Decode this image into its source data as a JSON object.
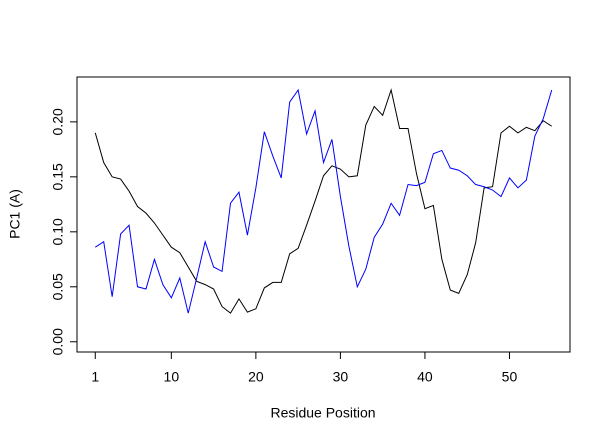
{
  "chart_data": {
    "type": "line",
    "x_label": "Residue Position",
    "y_label": "PC1 (A)",
    "x": [
      1,
      2,
      3,
      4,
      5,
      6,
      7,
      8,
      9,
      10,
      11,
      12,
      13,
      14,
      15,
      16,
      17,
      18,
      19,
      20,
      21,
      22,
      23,
      24,
      25,
      26,
      27,
      28,
      29,
      30,
      31,
      32,
      33,
      34,
      35,
      36,
      37,
      38,
      39,
      40,
      41,
      42,
      43,
      44,
      45,
      46,
      47,
      48,
      49,
      50,
      51,
      52,
      53,
      54,
      55
    ],
    "series": [
      {
        "color": "#000000",
        "values": [
          0.19,
          0.163,
          0.15,
          0.148,
          0.137,
          0.123,
          0.117,
          0.108,
          0.097,
          0.086,
          0.081,
          0.068,
          0.055,
          0.052,
          0.048,
          0.032,
          0.026,
          0.039,
          0.027,
          0.03,
          0.049,
          0.054,
          0.054,
          0.08,
          0.085,
          0.106,
          0.128,
          0.151,
          0.16,
          0.157,
          0.15,
          0.151,
          0.197,
          0.214,
          0.206,
          0.229,
          0.194,
          0.194,
          0.153,
          0.121,
          0.124,
          0.075,
          0.047,
          0.044,
          0.061,
          0.09,
          0.14,
          0.141,
          0.19,
          0.196,
          0.19,
          0.195,
          0.192,
          0.201,
          0.196
        ]
      },
      {
        "color": "#0000ff",
        "values": [
          0.086,
          0.091,
          0.041,
          0.098,
          0.106,
          0.05,
          0.048,
          0.075,
          0.052,
          0.04,
          0.058,
          0.026,
          0.058,
          0.091,
          0.068,
          0.064,
          0.126,
          0.136,
          0.097,
          0.14,
          0.191,
          0.169,
          0.149,
          0.218,
          0.229,
          0.189,
          0.21,
          0.163,
          0.184,
          0.132,
          0.087,
          0.05,
          0.066,
          0.095,
          0.107,
          0.126,
          0.115,
          0.143,
          0.142,
          0.145,
          0.171,
          0.174,
          0.158,
          0.156,
          0.151,
          0.143,
          0.141,
          0.138,
          0.132,
          0.149,
          0.14,
          0.147,
          0.187,
          0.203,
          0.229
        ]
      }
    ],
    "xlim": [
      -1.16,
      57.16
    ],
    "ylim": [
      -0.0093,
      0.2408
    ],
    "xticks": [
      1,
      10,
      20,
      30,
      40,
      50
    ],
    "yticks": [
      {
        "value": 0,
        "label": "0.00"
      },
      {
        "value": 0.05,
        "label": "0.05"
      },
      {
        "value": 0.1,
        "label": "0.10"
      },
      {
        "value": 0.15,
        "label": "0.15"
      },
      {
        "value": 0.2,
        "label": "0.20"
      }
    ]
  }
}
